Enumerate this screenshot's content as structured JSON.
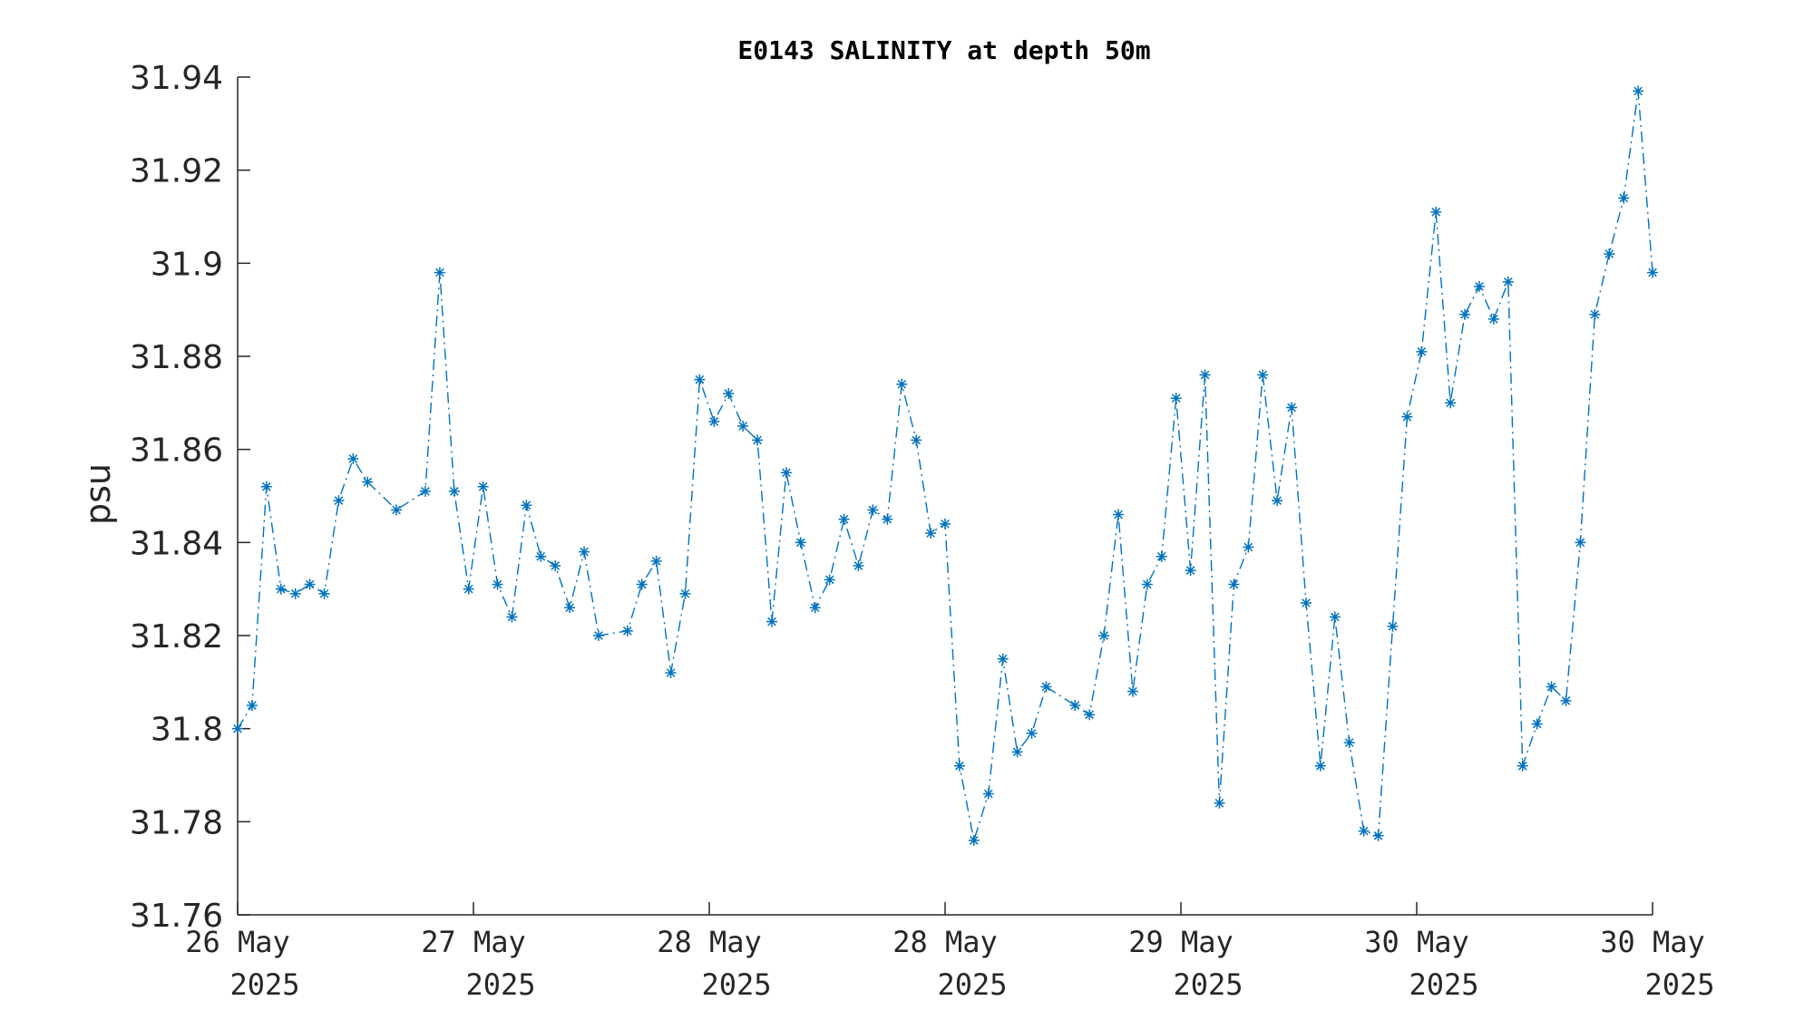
{
  "chart_data": {
    "type": "line",
    "title": "E0143 SALINITY at depth 50m",
    "xlabel": "",
    "ylabel": "psu",
    "ylim": [
      31.76,
      31.94
    ],
    "yticks": [
      31.76,
      31.78,
      31.8,
      31.82,
      31.84,
      31.86,
      31.88,
      31.9,
      31.92,
      31.94
    ],
    "ytick_labels": [
      "31.76",
      "31.78",
      "31.8",
      "31.82",
      "31.84",
      "31.86",
      "31.88",
      "31.9",
      "31.92",
      "31.94"
    ],
    "xtick_labels": [
      {
        "line1": "26 May",
        "line2": "2025"
      },
      {
        "line1": "27 May",
        "line2": "2025"
      },
      {
        "line1": "28 May",
        "line2": "2025"
      },
      {
        "line1": "28 May",
        "line2": "2025"
      },
      {
        "line1": "29 May",
        "line2": "2025"
      },
      {
        "line1": "30 May",
        "line2": "2025"
      },
      {
        "line1": "30 May",
        "line2": "2025"
      }
    ],
    "grid": false,
    "legend": "none",
    "line_style": "dash-dot",
    "marker": "asterisk",
    "series_color": "#0072BD",
    "series": [
      {
        "x": [
          0,
          1,
          2,
          3,
          4,
          5,
          6,
          7,
          8,
          9,
          11,
          13,
          14,
          15,
          16,
          17,
          18,
          19,
          20,
          21,
          22,
          23,
          24,
          25,
          27,
          28,
          29,
          30,
          31,
          32,
          33,
          34,
          35,
          36,
          37,
          38,
          39,
          40,
          41,
          42,
          43,
          44,
          45,
          46,
          47,
          48,
          49,
          50,
          51,
          52,
          53,
          54,
          55,
          56,
          58,
          59,
          60,
          61,
          62,
          63,
          64,
          65,
          66,
          67,
          68,
          69,
          70,
          71,
          72,
          73,
          74,
          75,
          76,
          77,
          78,
          79,
          80,
          81,
          82,
          83,
          84,
          85,
          86,
          87,
          88,
          89,
          90,
          91,
          92,
          93,
          94,
          95,
          96,
          97,
          98
        ],
        "values": [
          31.8,
          31.805,
          31.852,
          31.83,
          31.829,
          31.831,
          31.829,
          31.849,
          31.858,
          31.853,
          31.847,
          31.851,
          31.898,
          31.851,
          31.83,
          31.852,
          31.831,
          31.824,
          31.848,
          31.837,
          31.835,
          31.826,
          31.838,
          31.82,
          31.821,
          31.831,
          31.836,
          31.812,
          31.829,
          31.875,
          31.866,
          31.872,
          31.865,
          31.862,
          31.823,
          31.855,
          31.84,
          31.826,
          31.832,
          31.845,
          31.835,
          31.847,
          31.845,
          31.874,
          31.862,
          31.842,
          31.844,
          31.792,
          31.776,
          31.786,
          31.815,
          31.795,
          31.799,
          31.809,
          31.805,
          31.803,
          31.82,
          31.846,
          31.808,
          31.831,
          31.837,
          31.871,
          31.834,
          31.876,
          31.784,
          31.831,
          31.839,
          31.876,
          31.849,
          31.869,
          31.827,
          31.792,
          31.824,
          31.797,
          31.778,
          31.777,
          31.822,
          31.867,
          31.881,
          31.911,
          31.87,
          31.889,
          31.895,
          31.888,
          31.896,
          31.792,
          31.801,
          31.809,
          31.806,
          31.84,
          31.889,
          31.902,
          31.914,
          31.937,
          31.898
        ]
      }
    ]
  }
}
